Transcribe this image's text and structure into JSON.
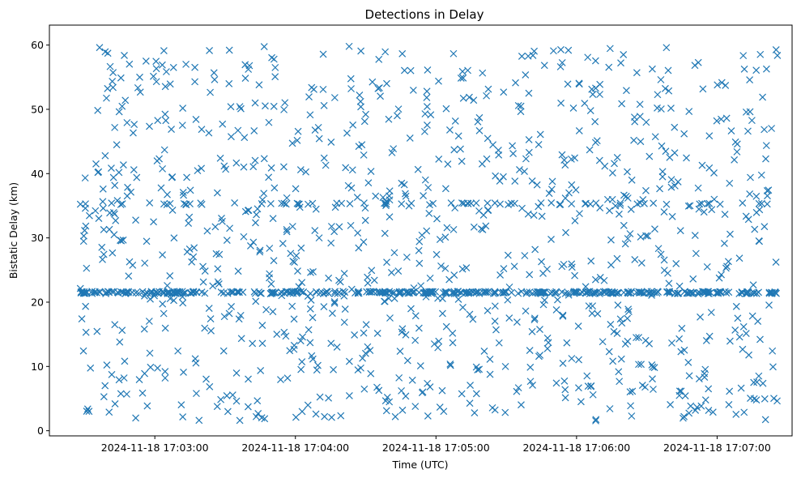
{
  "chart_data": {
    "type": "scatter",
    "title": "Detections in Delay",
    "xlabel": "Time (UTC)",
    "ylabel": "Bistatic Delay (km)",
    "marker": "x",
    "series_color": "#1f77b4",
    "grid": false,
    "legend": "none",
    "xlim": [
      "2024-11-18 17:02:15",
      "2024-11-18 17:07:32"
    ],
    "ylim": [
      -0.8,
      63.1
    ],
    "x_ticks": [
      "2024-11-18 17:03:00",
      "2024-11-18 17:04:00",
      "2024-11-18 17:05:00",
      "2024-11-18 17:06:00",
      "2024-11-18 17:07:00"
    ],
    "y_ticks": [
      0,
      10,
      20,
      30,
      40,
      50,
      60
    ],
    "time_range": [
      "2024-11-18 17:02:28",
      "2024-11-18 17:07:26"
    ],
    "delay_range": [
      1.5,
      59.8
    ],
    "point_count": 1500,
    "dense_bands_km": [
      21.5,
      35.3
    ]
  }
}
